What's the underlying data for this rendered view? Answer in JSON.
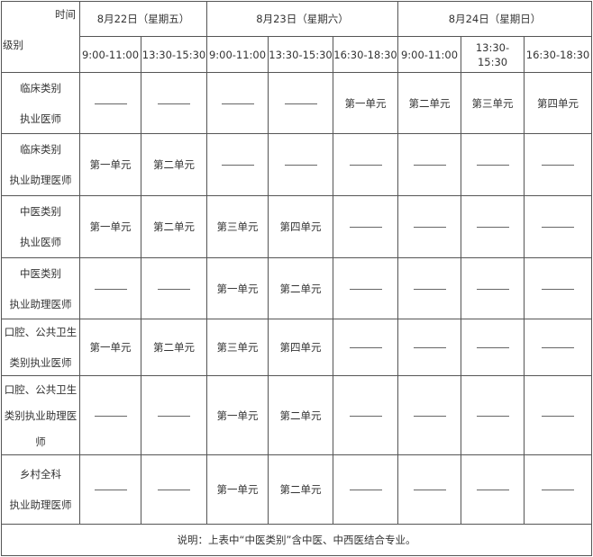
{
  "header": {
    "time_label": "时间",
    "level_label": "级别",
    "days": [
      "8月22日（星期五）",
      "8月23日（星期六）",
      "8月24日（星期日）"
    ],
    "slots": [
      "9:00-11:00",
      "13:30-15:30",
      "9:00-11:00",
      "13:30-15:30",
      "16:30-18:30",
      "9:00-11:00",
      "13:30-15:30",
      "16:30-18:30"
    ]
  },
  "rows": [
    {
      "label": [
        "临床类别",
        "执业医师"
      ],
      "cells": [
        "———",
        "———",
        "———",
        "———",
        "第一单元",
        "第二单元",
        "第三单元",
        "第四单元"
      ]
    },
    {
      "label": [
        "临床类别",
        "执业助理医师"
      ],
      "cells": [
        "第一单元",
        "第二单元",
        "———",
        "———",
        "———",
        "———",
        "———",
        "———"
      ]
    },
    {
      "label": [
        "中医类别",
        "执业医师"
      ],
      "cells": [
        "第一单元",
        "第二单元",
        "第三单元",
        "第四单元",
        "———",
        "———",
        "———",
        "———"
      ]
    },
    {
      "label": [
        "中医类别",
        "执业助理医师"
      ],
      "cells": [
        "———",
        "———",
        "第一单元",
        "第二单元",
        "———",
        "———",
        "———",
        "———"
      ]
    },
    {
      "label": [
        "口腔、公共卫生",
        "类别执业医师"
      ],
      "cells": [
        "第一单元",
        "第二单元",
        "第三单元",
        "第四单元",
        "———",
        "———",
        "———",
        "———"
      ]
    },
    {
      "label": [
        "口腔、公共卫生",
        "类别执业助理医",
        "师"
      ],
      "cells": [
        "———",
        "———",
        "第一单元",
        "第二单元",
        "———",
        "———",
        "———",
        "———"
      ]
    },
    {
      "label": [
        "乡村全科",
        "执业助理医师"
      ],
      "cells": [
        "———",
        "———",
        "第一单元",
        "第二单元",
        "———",
        "———",
        "———",
        "———"
      ]
    }
  ],
  "note": "说明：上表中“中医类别”含中医、中西医结合专业。"
}
